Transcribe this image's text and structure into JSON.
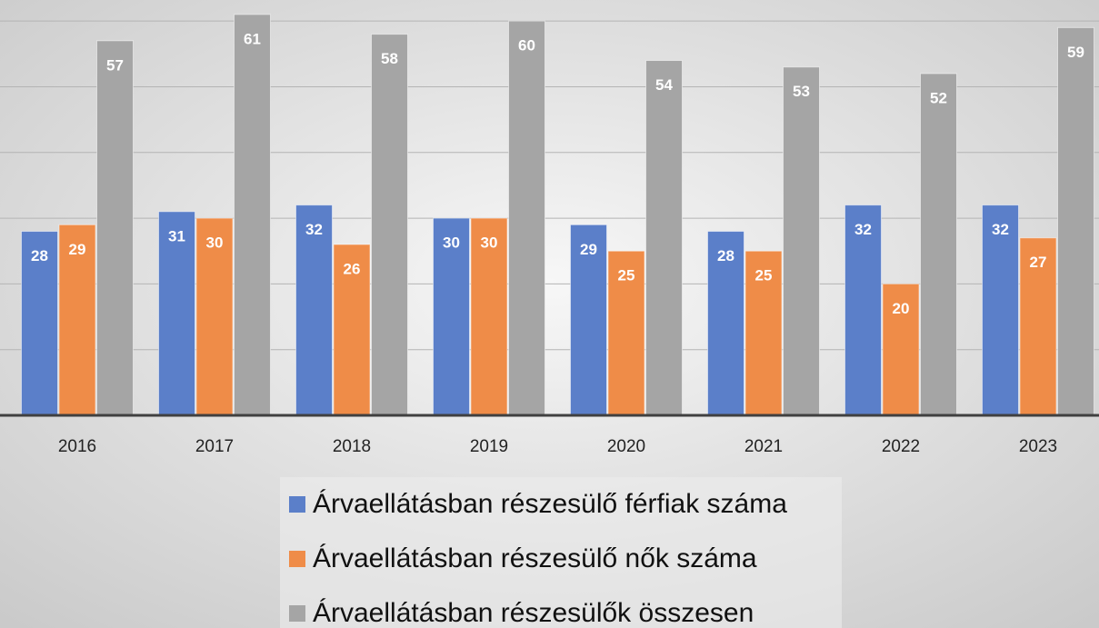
{
  "chart_data": {
    "type": "bar",
    "categories": [
      "2016",
      "2017",
      "2018",
      "2019",
      "2020",
      "2021",
      "2022",
      "2023"
    ],
    "series": [
      {
        "name": "Árvaellátásban részesülő férfiak száma",
        "color": "#5b7fc9",
        "values": [
          28,
          31,
          32,
          30,
          29,
          28,
          32,
          32
        ]
      },
      {
        "name": "Árvaellátásban részesülő nők száma",
        "color": "#ef8c48",
        "values": [
          29,
          30,
          26,
          30,
          25,
          25,
          20,
          27
        ]
      },
      {
        "name": "Árvaellátásban részesülők összesen",
        "color": "#a5a5a5",
        "values": [
          57,
          61,
          58,
          60,
          54,
          53,
          52,
          59
        ]
      }
    ],
    "ylim": [
      0,
      63.2
    ],
    "yticks": [
      0,
      10,
      20,
      30,
      40,
      50,
      60
    ],
    "grid": true,
    "legend": "bottom"
  }
}
